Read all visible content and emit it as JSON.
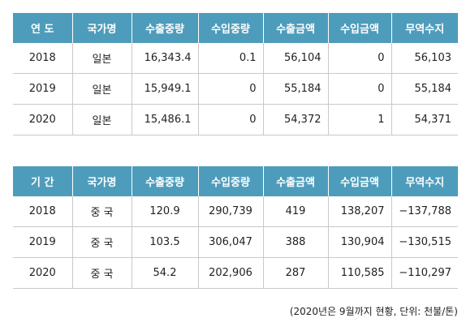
{
  "table1": {
    "headers": [
      "연 도",
      "국가명",
      "수출중량",
      "수입중량",
      "수출금액",
      "수입금액",
      "무역수지"
    ],
    "rows": [
      [
        "2018",
        "일본",
        "16,343.4",
        "0.1",
        "56,104",
        "0",
        "56,103"
      ],
      [
        "2019",
        "일본",
        "15,949.1",
        "0",
        "55,184",
        "0",
        "55,184"
      ],
      [
        "2020",
        "일본",
        "15,486.1",
        "0",
        "54,372",
        "1",
        "54,371"
      ]
    ]
  },
  "table2": {
    "headers": [
      "기 간",
      "국가명",
      "수출중량",
      "수입중량",
      "수출금액",
      "수입금액",
      "무역수지"
    ],
    "rows": [
      [
        "2018",
        "중 국",
        "120.9",
        "290,739",
        "419",
        "138,207",
        "−137,788"
      ],
      [
        "2019",
        "중 국",
        "103.5",
        "306,047",
        "388",
        "130,904",
        "−130,515"
      ],
      [
        "2020",
        "중 국",
        "54.2",
        "202,906",
        "287",
        "110,585",
        "−110,297"
      ]
    ]
  },
  "note": "(2020년은 9월까지 현황, 단위: 천불/톤)"
}
